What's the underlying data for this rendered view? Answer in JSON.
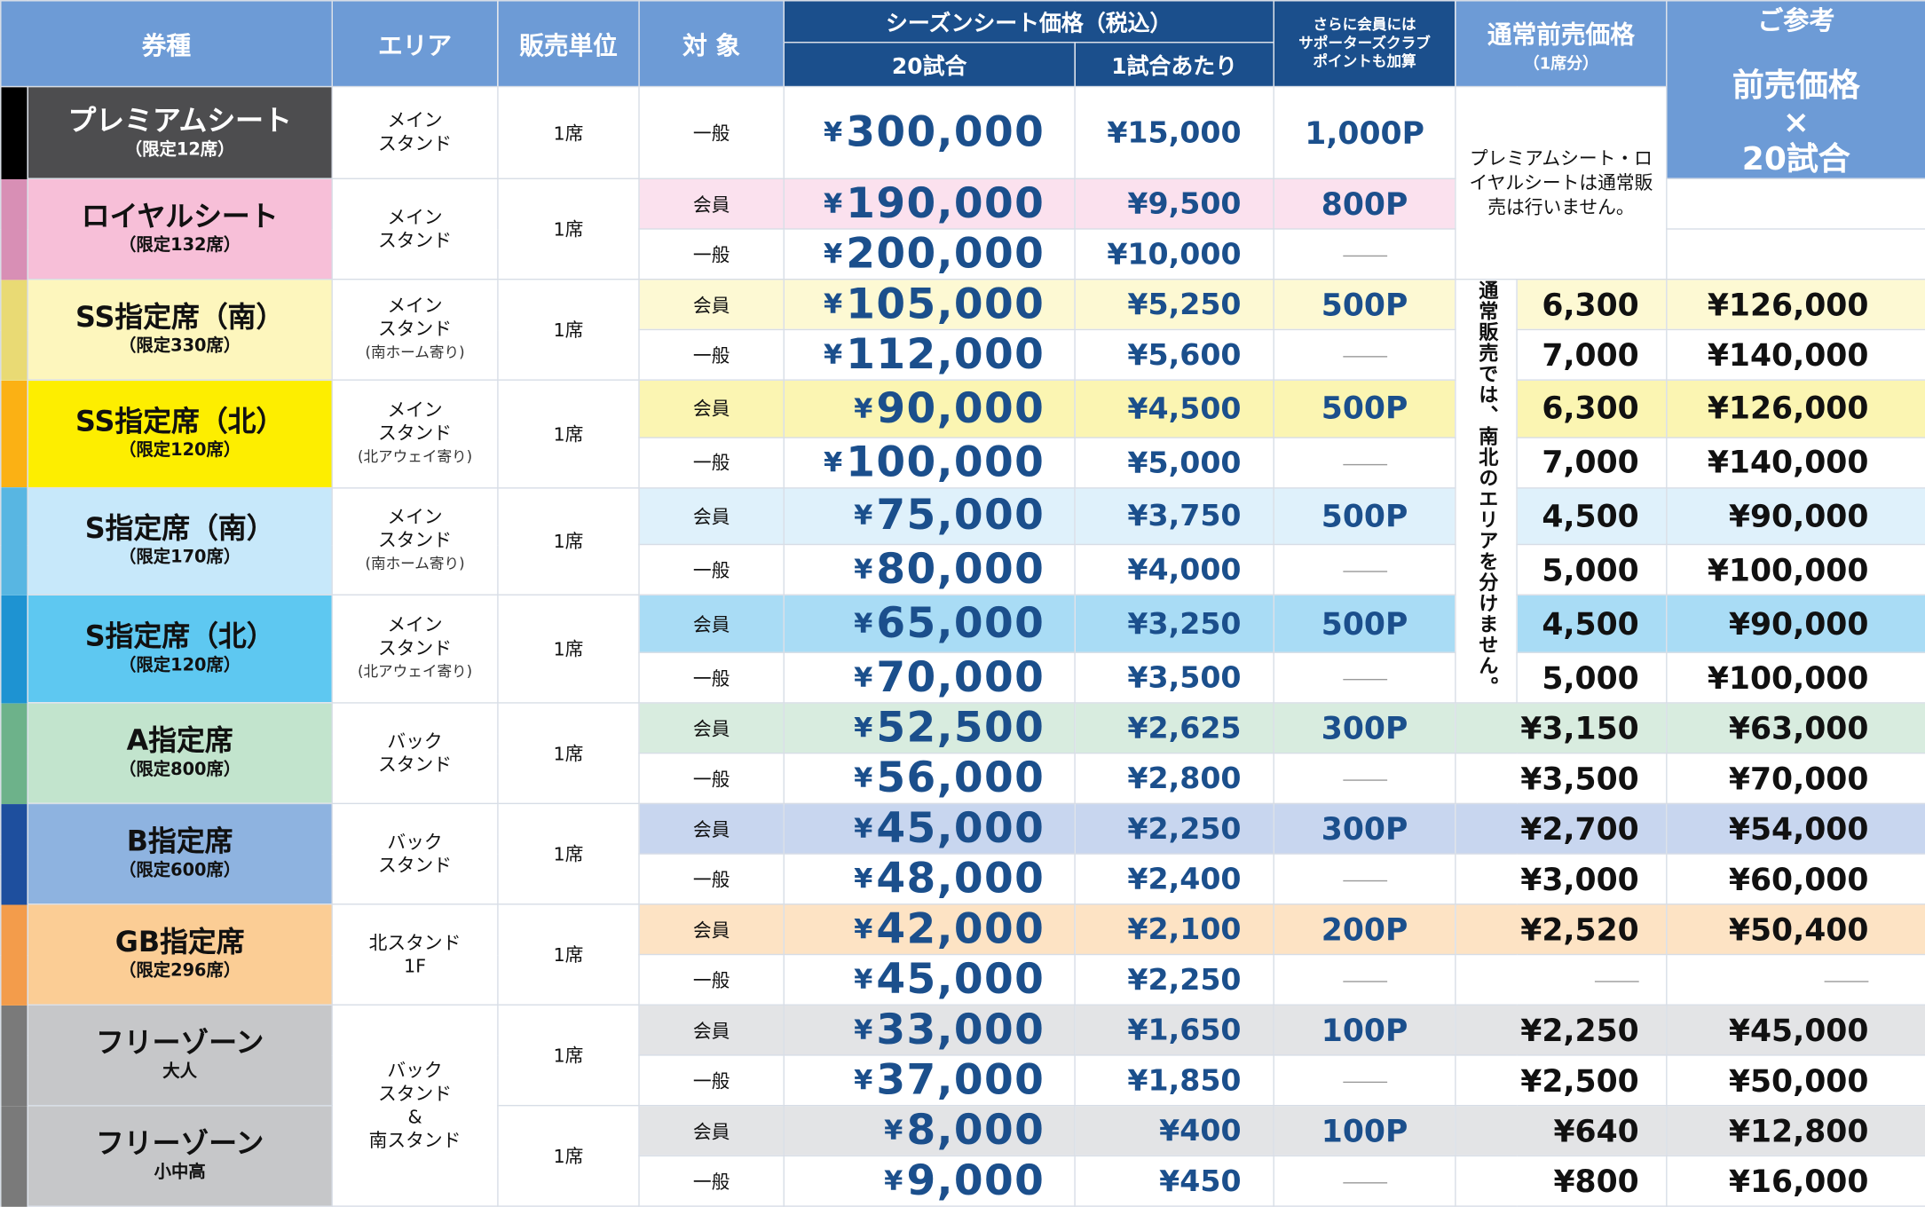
{
  "header": {
    "col_type": "券種",
    "col_area": "エリア",
    "col_unit": "販売単位",
    "col_target": "対 象",
    "season_price": "シーズンシート価格（税込）",
    "price_20": "20試合",
    "price_per": "1試合あたり",
    "points_line1": "さらに会員には",
    "points_line2": "サポーターズクラブ",
    "points_line3": "ポイントも加算",
    "normal_presale": "通常前売価格",
    "normal_presale_sub": "（1席分）",
    "ref_title": "ご参考",
    "ref_line1": "前売価格",
    "ref_line2": "×",
    "ref_line3": "20試合"
  },
  "notes": {
    "premium_royal": "プレミアムシート・ロイヤルシートは通常販売は行いません。",
    "north_south": "通常販売では、南北のエリアを分けません。"
  },
  "common": {
    "unit": "1席",
    "member": "会員",
    "general": "一般"
  },
  "seats": [
    {
      "name": "プレミアムシート",
      "cap": "（限定12席）",
      "area1": "メイン",
      "area2": "スタンド",
      "area3": "",
      "bar": "#000000",
      "bg": "#4d4d4f",
      "fg": "#ffffff",
      "rows": [
        {
          "target": "一般",
          "p20": "300,000",
          "p1": "¥15,000",
          "pts": "1,000P",
          "np": "",
          "ref": ""
        }
      ]
    },
    {
      "name": "ロイヤルシート",
      "cap": "（限定132席）",
      "area1": "メイン",
      "area2": "スタンド",
      "area3": "",
      "bar": "#d88fb5",
      "bg": "#f7bfd8",
      "fg": "#111111",
      "rows": [
        {
          "target": "会員",
          "p20": "190,000",
          "p1": "¥9,500",
          "pts": "800P",
          "np": "",
          "ref": ""
        },
        {
          "target": "一般",
          "p20": "200,000",
          "p1": "¥10,000",
          "pts": "",
          "np": "",
          "ref": ""
        }
      ]
    },
    {
      "name": "SS指定席（南）",
      "cap": "（限定330席）",
      "area1": "メイン",
      "area2": "スタンド",
      "area3": "(南ホーム寄り)",
      "bar": "#e9da74",
      "bg": "#fdf6bd",
      "fg": "#111111",
      "rows": [
        {
          "target": "会員",
          "p20": "105,000",
          "p1": "¥5,250",
          "pts": "500P",
          "np": "6,300",
          "ref": "¥126,000"
        },
        {
          "target": "一般",
          "p20": "112,000",
          "p1": "¥5,600",
          "pts": "",
          "np": "7,000",
          "ref": "¥140,000"
        }
      ]
    },
    {
      "name": "SS指定席（北）",
      "cap": "（限定120席）",
      "area1": "メイン",
      "area2": "スタンド",
      "area3": "(北アウェイ寄り)",
      "bar": "#fbb114",
      "bg": "#fdee00",
      "fg": "#111111",
      "rows": [
        {
          "target": "会員",
          "p20": "90,000",
          "p1": "¥4,500",
          "pts": "500P",
          "np": "6,300",
          "ref": "¥126,000"
        },
        {
          "target": "一般",
          "p20": "100,000",
          "p1": "¥5,000",
          "pts": "",
          "np": "7,000",
          "ref": "¥140,000"
        }
      ]
    },
    {
      "name": "S指定席（南）",
      "cap": "（限定170席）",
      "area1": "メイン",
      "area2": "スタンド",
      "area3": "(南ホーム寄り)",
      "bar": "#58b6e2",
      "bg": "#c7e8fa",
      "fg": "#111111",
      "rows": [
        {
          "target": "会員",
          "p20": "75,000",
          "p1": "¥3,750",
          "pts": "500P",
          "np": "4,500",
          "ref": "¥90,000"
        },
        {
          "target": "一般",
          "p20": "80,000",
          "p1": "¥4,000",
          "pts": "",
          "np": "5,000",
          "ref": "¥100,000"
        }
      ]
    },
    {
      "name": "S指定席（北）",
      "cap": "（限定120席）",
      "area1": "メイン",
      "area2": "スタンド",
      "area3": "(北アウェイ寄り)",
      "bar": "#1e93d2",
      "bg": "#5ec8f1",
      "fg": "#111111",
      "rows": [
        {
          "target": "会員",
          "p20": "65,000",
          "p1": "¥3,250",
          "pts": "500P",
          "np": "4,500",
          "ref": "¥90,000"
        },
        {
          "target": "一般",
          "p20": "70,000",
          "p1": "¥3,500",
          "pts": "",
          "np": "5,000",
          "ref": "¥100,000"
        }
      ]
    },
    {
      "name": "A指定席",
      "cap": "（限定800席）",
      "area1": "バック",
      "area2": "スタンド",
      "area3": "",
      "bar": "#6db28a",
      "bg": "#c2e4cd",
      "fg": "#111111",
      "rows": [
        {
          "target": "会員",
          "p20": "52,500",
          "p1": "¥2,625",
          "pts": "300P",
          "np": "¥3,150",
          "ref": "¥63,000"
        },
        {
          "target": "一般",
          "p20": "56,000",
          "p1": "¥2,800",
          "pts": "",
          "np": "¥3,500",
          "ref": "¥70,000"
        }
      ]
    },
    {
      "name": "B指定席",
      "cap": "（限定600席）",
      "area1": "バック",
      "area2": "スタンド",
      "area3": "",
      "bar": "#1e4f9e",
      "bg": "#8eb3e0",
      "fg": "#111111",
      "rows": [
        {
          "target": "会員",
          "p20": "45,000",
          "p1": "¥2,250",
          "pts": "300P",
          "np": "¥2,700",
          "ref": "¥54,000"
        },
        {
          "target": "一般",
          "p20": "48,000",
          "p1": "¥2,400",
          "pts": "",
          "np": "¥3,000",
          "ref": "¥60,000"
        }
      ]
    },
    {
      "name": "GB指定席",
      "cap": "（限定296席）",
      "area1": "北スタンド",
      "area2": "1F",
      "area3": "",
      "bar": "#f39c4b",
      "bg": "#fbcd95",
      "fg": "#111111",
      "rows": [
        {
          "target": "会員",
          "p20": "42,000",
          "p1": "¥2,100",
          "pts": "200P",
          "np": "¥2,520",
          "ref": "¥50,400"
        },
        {
          "target": "一般",
          "p20": "45,000",
          "p1": "¥2,250",
          "pts": "",
          "np": "",
          "ref": ""
        }
      ]
    },
    {
      "name": "フリーゾーン",
      "cap": "大人",
      "area1": "バック",
      "area2": "スタンド",
      "area3": "&",
      "area4": "南スタンド",
      "bar": "#7a7a7a",
      "bg": "#c6c7c9",
      "fg": "#111111",
      "rows": [
        {
          "target": "会員",
          "p20": "33,000",
          "p1": "¥1,650",
          "pts": "100P",
          "np": "¥2,250",
          "ref": "¥45,000"
        },
        {
          "target": "一般",
          "p20": "37,000",
          "p1": "¥1,850",
          "pts": "",
          "np": "¥2,500",
          "ref": "¥50,000"
        }
      ]
    },
    {
      "name": "フリーゾーン",
      "cap": "小中高",
      "area1": "",
      "area2": "",
      "area3": "",
      "bar": "#7a7a7a",
      "bg": "#c6c7c9",
      "fg": "#111111",
      "rows": [
        {
          "target": "会員",
          "p20": "8,000",
          "p1": "¥400",
          "pts": "100P",
          "np": "¥640",
          "ref": "¥12,800"
        },
        {
          "target": "一般",
          "p20": "9,000",
          "p1": "¥450",
          "pts": "",
          "np": "¥800",
          "ref": "¥16,000"
        }
      ]
    }
  ],
  "yen": "¥",
  "colors": {
    "header_light": "#6d9bd6",
    "header_dark": "#1b4f8c",
    "price_text": "#1b4f8c",
    "member_highlights": [
      "#fbe1ee",
      "#fdf9d3",
      "#fbf5b2",
      "#dff1fb",
      "#a9dcf5",
      "#d8ecdf",
      "#c8d6ef",
      "#fde3c4",
      "#e3e4e6",
      "#e3e4e6"
    ]
  }
}
